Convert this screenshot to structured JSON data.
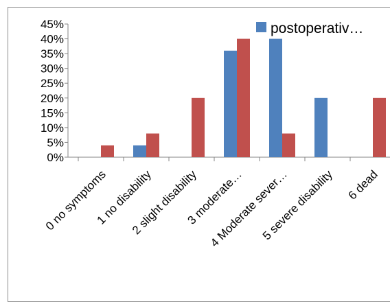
{
  "chart_data": {
    "type": "bar",
    "categories": [
      "0  no symptoms",
      "1 no disability",
      "2 slight disability",
      "3 moderate…",
      "4 Moderate sever…",
      "5 severe disability",
      "6 dead"
    ],
    "series": [
      {
        "name": "postoperativ…",
        "color": "#4f81bd",
        "values": [
          0,
          4,
          0,
          36,
          40,
          20,
          0
        ]
      },
      {
        "color": "#c0504d",
        "values": [
          4,
          8,
          20,
          40,
          8,
          0,
          20
        ]
      }
    ],
    "y_ticks": [
      "0%",
      "5%",
      "10%",
      "15%",
      "20%",
      "25%",
      "30%",
      "35%",
      "40%",
      "45%"
    ],
    "ylim": [
      0,
      45
    ],
    "legend_position": "top-right",
    "grid": false
  }
}
